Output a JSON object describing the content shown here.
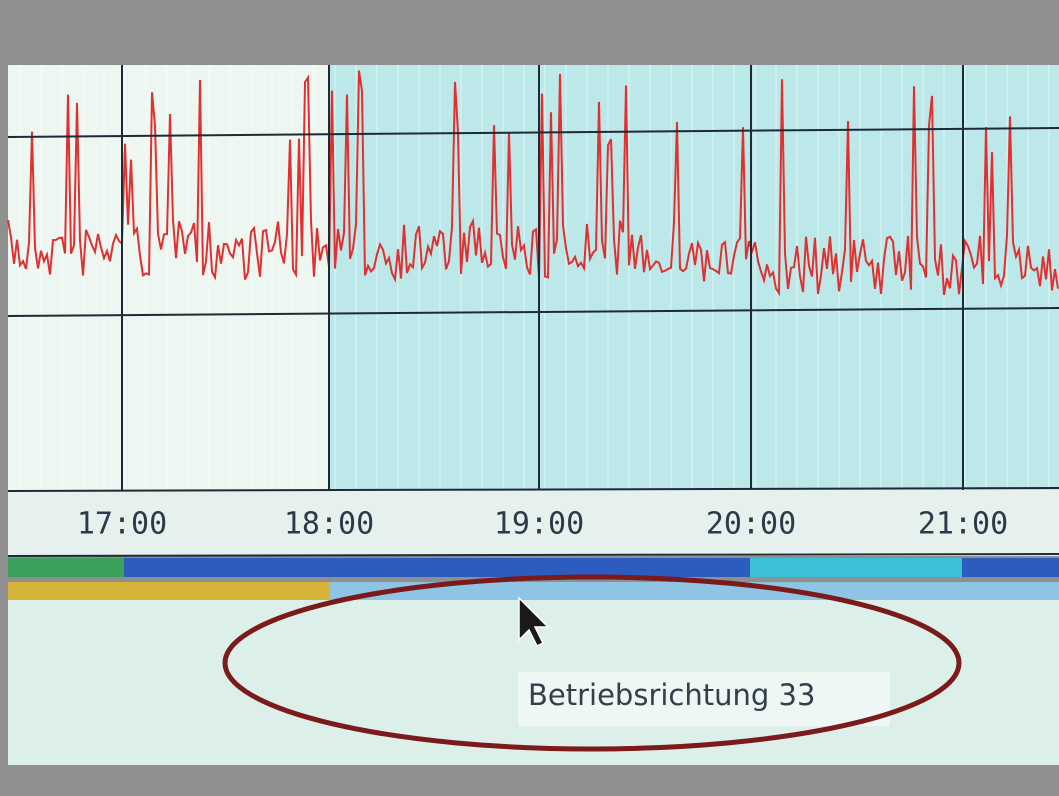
{
  "time_axis": {
    "labels": [
      "17:00",
      "18:00",
      "19:00",
      "20:00",
      "21:00"
    ]
  },
  "tooltip": {
    "text": "Betriebsrichtung 33"
  }
}
